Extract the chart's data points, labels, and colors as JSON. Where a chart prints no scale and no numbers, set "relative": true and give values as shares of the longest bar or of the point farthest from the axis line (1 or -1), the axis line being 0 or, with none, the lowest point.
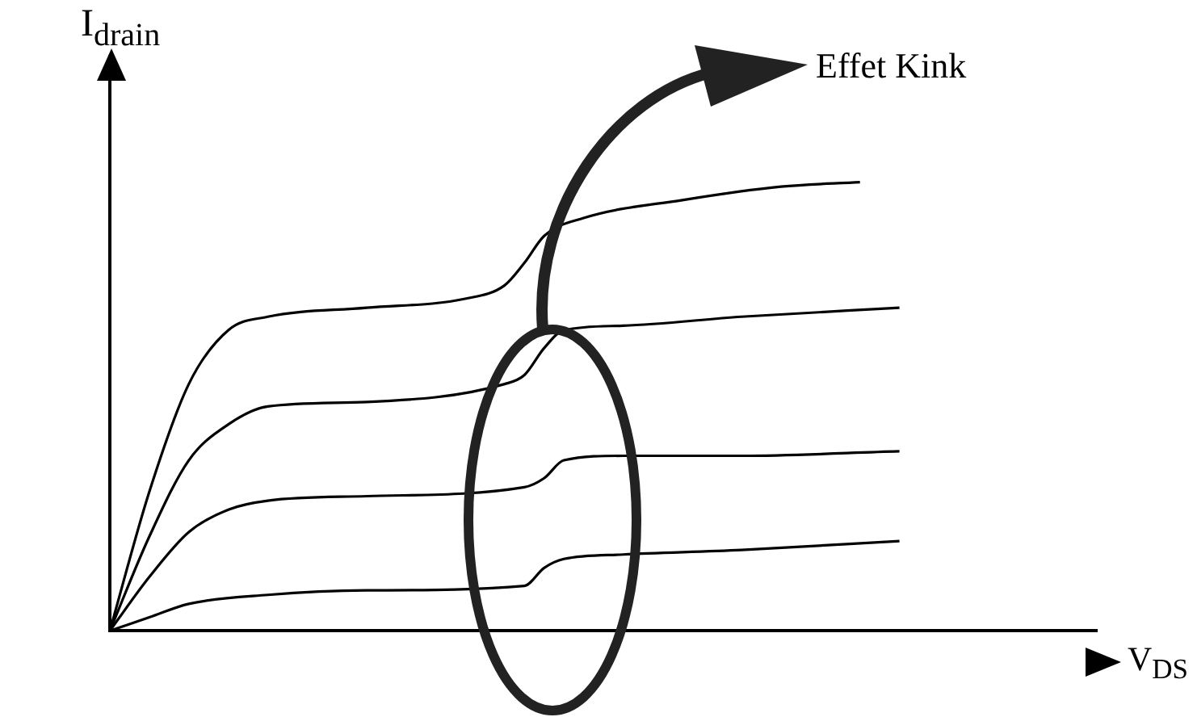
{
  "chart_data": {
    "type": "line",
    "relative": true,
    "xlabel": "V$_{DS}$",
    "ylabel": "I$_{drain}$",
    "annotations": [
      "Effet Kink"
    ],
    "legend": false,
    "grid": false,
    "categories": [
      null,
      null,
      null,
      null,
      null,
      null,
      null,
      null,
      null,
      null,
      null,
      null,
      null,
      null,
      null,
      null,
      null,
      null,
      null,
      null,
      null,
      null,
      null,
      null,
      null,
      null,
      null,
      null,
      null,
      null,
      null,
      null,
      null,
      null,
      null,
      null,
      null,
      null,
      null,
      null,
      null,
      null,
      null,
      null,
      null,
      null,
      null,
      null,
      null,
      null,
      null
    ],
    "series": [
      {
        "color": "#000000",
        "values": [
          0,
          null,
          0.31,
          null,
          0.55,
          null,
          0.67,
          null,
          0.7,
          null,
          null,
          null,
          null,
          0.72,
          null,
          null,
          null,
          null,
          0.74,
          null,
          0.77,
          0.82,
          0.88,
          null,
          0.92,
          null,
          null,
          null,
          null,
          0.96,
          null,
          null,
          null,
          null,
          0.99,
          null,
          null,
          null,
          1,
          null,
          null,
          null,
          null,
          null,
          null,
          null,
          null,
          null,
          null,
          null,
          null
        ]
      },
      {
        "color": "#000000",
        "values": [
          0,
          null,
          0.21,
          null,
          0.38,
          null,
          0.46,
          null,
          0.5,
          null,
          null,
          null,
          null,
          0.51,
          null,
          null,
          null,
          null,
          null,
          null,
          0.55,
          0.57,
          0.63,
          0.67,
          null,
          null,
          0.68,
          null,
          null,
          null,
          null,
          null,
          0.7,
          null,
          null,
          null,
          null,
          null,
          null,
          null,
          0.72,
          null,
          null,
          null,
          null,
          null,
          null,
          null,
          null,
          null,
          null
        ]
      },
      {
        "color": "#000000",
        "values": [
          0,
          null,
          0.12,
          null,
          0.22,
          null,
          0.27,
          null,
          0.29,
          null,
          null,
          null,
          null,
          0.3,
          null,
          null,
          null,
          null,
          null,
          null,
          null,
          0.32,
          0.34,
          0.38,
          null,
          null,
          0.39,
          null,
          null,
          null,
          null,
          null,
          0.39,
          null,
          null,
          null,
          null,
          null,
          null,
          null,
          0.4,
          null,
          null,
          null,
          null,
          null,
          null,
          null,
          null,
          null,
          null
        ]
      },
      {
        "color": "#000000",
        "values": [
          0,
          null,
          0.03,
          null,
          0.06,
          null,
          null,
          null,
          0.08,
          null,
          null,
          null,
          null,
          0.09,
          null,
          null,
          null,
          null,
          null,
          null,
          null,
          0.1,
          0.14,
          0.16,
          null,
          null,
          0.17,
          null,
          null,
          null,
          null,
          null,
          0.18,
          null,
          null,
          null,
          null,
          null,
          null,
          null,
          0.2,
          null,
          null,
          null,
          null,
          null,
          null,
          null,
          null,
          null,
          null
        ]
      }
    ]
  }
}
